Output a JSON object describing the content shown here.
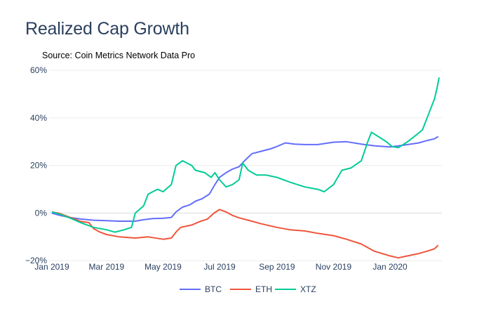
{
  "chart_data": {
    "type": "line",
    "title": "Realized Cap Growth",
    "subtitle": "Source: Coin Metrics Network Data Pro",
    "xlabel": "",
    "ylabel": "",
    "x_range": [
      "2018-12-29",
      "2020-02-26"
    ],
    "ylim": [
      -22,
      63
    ],
    "y_ticks": [
      -20,
      0,
      20,
      40,
      60
    ],
    "y_tick_labels": [
      "−20%",
      "0%",
      "20%",
      "40%",
      "60%"
    ],
    "x_ticks": [
      "2019-01-01",
      "2019-03-01",
      "2019-05-01",
      "2019-07-01",
      "2019-09-01",
      "2019-11-01",
      "2020-01-01"
    ],
    "x_tick_labels": [
      "Jan 2019",
      "Mar 2019",
      "May 2019",
      "Jul 2019",
      "Sep 2019",
      "Nov 2019",
      "Jan 2020"
    ],
    "grid": true,
    "legend": "bottom-center",
    "series": [
      {
        "name": "BTC",
        "color": "#636efa",
        "points": [
          [
            "2019-01-01",
            0
          ],
          [
            "2019-01-10",
            -1
          ],
          [
            "2019-01-20",
            -1.8
          ],
          [
            "2019-02-01",
            -2.5
          ],
          [
            "2019-02-15",
            -3
          ],
          [
            "2019-03-01",
            -3.2
          ],
          [
            "2019-03-15",
            -3.4
          ],
          [
            "2019-04-01",
            -3.4
          ],
          [
            "2019-04-10",
            -2.8
          ],
          [
            "2019-04-20",
            -2.3
          ],
          [
            "2019-05-01",
            -2.2
          ],
          [
            "2019-05-10",
            -1.8
          ],
          [
            "2019-05-15",
            0.5
          ],
          [
            "2019-05-22",
            2.5
          ],
          [
            "2019-05-30",
            3.5
          ],
          [
            "2019-06-05",
            5
          ],
          [
            "2019-06-12",
            6
          ],
          [
            "2019-06-20",
            8
          ],
          [
            "2019-06-26",
            12
          ],
          [
            "2019-07-01",
            15
          ],
          [
            "2019-07-08",
            17
          ],
          [
            "2019-07-15",
            18.5
          ],
          [
            "2019-07-22",
            19.5
          ],
          [
            "2019-07-28",
            22
          ],
          [
            "2019-08-05",
            25
          ],
          [
            "2019-08-15",
            26
          ],
          [
            "2019-08-25",
            27
          ],
          [
            "2019-09-01",
            28
          ],
          [
            "2019-09-10",
            29.5
          ],
          [
            "2019-09-20",
            29
          ],
          [
            "2019-10-01",
            28.8
          ],
          [
            "2019-10-15",
            28.8
          ],
          [
            "2019-11-01",
            29.8
          ],
          [
            "2019-11-15",
            30
          ],
          [
            "2019-12-01",
            29
          ],
          [
            "2019-12-15",
            28.3
          ],
          [
            "2020-01-01",
            27.8
          ],
          [
            "2020-01-15",
            28.5
          ],
          [
            "2020-02-01",
            29.5
          ],
          [
            "2020-02-10",
            30.5
          ],
          [
            "2020-02-18",
            31.2
          ],
          [
            "2020-02-22",
            32.2
          ]
        ]
      },
      {
        "name": "ETH",
        "color": "#ef553b",
        "points": [
          [
            "2019-01-01",
            0.5
          ],
          [
            "2019-01-08",
            0
          ],
          [
            "2019-01-15",
            -1
          ],
          [
            "2019-01-22",
            -2
          ],
          [
            "2019-02-01",
            -3.5
          ],
          [
            "2019-02-10",
            -4
          ],
          [
            "2019-02-15",
            -6.5
          ],
          [
            "2019-02-22",
            -8
          ],
          [
            "2019-03-01",
            -9
          ],
          [
            "2019-03-15",
            -10
          ],
          [
            "2019-04-01",
            -10.5
          ],
          [
            "2019-04-15",
            -10
          ],
          [
            "2019-05-01",
            -11
          ],
          [
            "2019-05-10",
            -10.5
          ],
          [
            "2019-05-15",
            -8
          ],
          [
            "2019-05-20",
            -6
          ],
          [
            "2019-06-01",
            -5
          ],
          [
            "2019-06-10",
            -3.5
          ],
          [
            "2019-06-18",
            -2.5
          ],
          [
            "2019-06-25",
            0
          ],
          [
            "2019-07-01",
            1.5
          ],
          [
            "2019-07-08",
            0.5
          ],
          [
            "2019-07-15",
            -1
          ],
          [
            "2019-07-22",
            -2
          ],
          [
            "2019-08-01",
            -3
          ],
          [
            "2019-08-15",
            -4.5
          ],
          [
            "2019-09-01",
            -6
          ],
          [
            "2019-09-15",
            -7
          ],
          [
            "2019-10-01",
            -7.5
          ],
          [
            "2019-10-15",
            -8.5
          ],
          [
            "2019-11-01",
            -9.5
          ],
          [
            "2019-11-15",
            -11
          ],
          [
            "2019-12-01",
            -13
          ],
          [
            "2019-12-15",
            -16
          ],
          [
            "2020-01-01",
            -18
          ],
          [
            "2020-01-10",
            -18.8
          ],
          [
            "2020-01-20",
            -18
          ],
          [
            "2020-02-01",
            -17
          ],
          [
            "2020-02-10",
            -16
          ],
          [
            "2020-02-18",
            -15
          ],
          [
            "2020-02-22",
            -13.5
          ]
        ]
      },
      {
        "name": "XTZ",
        "color": "#00cc96",
        "points": [
          [
            "2019-01-01",
            0.5
          ],
          [
            "2019-01-10",
            -0.5
          ],
          [
            "2019-01-20",
            -2
          ],
          [
            "2019-02-01",
            -4
          ],
          [
            "2019-02-15",
            -6
          ],
          [
            "2019-03-01",
            -7
          ],
          [
            "2019-03-10",
            -8
          ],
          [
            "2019-03-20",
            -7
          ],
          [
            "2019-03-28",
            -6
          ],
          [
            "2019-04-01",
            0
          ],
          [
            "2019-04-10",
            3
          ],
          [
            "2019-04-15",
            8
          ],
          [
            "2019-04-25",
            10
          ],
          [
            "2019-05-01",
            9
          ],
          [
            "2019-05-10",
            12
          ],
          [
            "2019-05-15",
            20
          ],
          [
            "2019-05-22",
            22
          ],
          [
            "2019-06-01",
            20
          ],
          [
            "2019-06-05",
            18
          ],
          [
            "2019-06-15",
            17
          ],
          [
            "2019-06-22",
            15
          ],
          [
            "2019-06-26",
            17
          ],
          [
            "2019-07-01",
            14
          ],
          [
            "2019-07-08",
            11
          ],
          [
            "2019-07-15",
            12
          ],
          [
            "2019-07-22",
            14
          ],
          [
            "2019-07-26",
            21
          ],
          [
            "2019-08-01",
            18
          ],
          [
            "2019-08-10",
            16
          ],
          [
            "2019-08-20",
            16
          ],
          [
            "2019-09-01",
            15
          ],
          [
            "2019-09-15",
            13
          ],
          [
            "2019-10-01",
            11
          ],
          [
            "2019-10-15",
            10
          ],
          [
            "2019-10-22",
            9
          ],
          [
            "2019-11-01",
            12
          ],
          [
            "2019-11-10",
            18
          ],
          [
            "2019-11-20",
            19
          ],
          [
            "2019-12-01",
            22
          ],
          [
            "2019-12-08",
            30
          ],
          [
            "2019-12-12",
            34
          ],
          [
            "2019-12-20",
            32
          ],
          [
            "2019-12-28",
            30
          ],
          [
            "2020-01-03",
            28
          ],
          [
            "2020-01-10",
            27.5
          ],
          [
            "2020-01-20",
            30
          ],
          [
            "2020-01-30",
            33
          ],
          [
            "2020-02-05",
            35
          ],
          [
            "2020-02-12",
            42
          ],
          [
            "2020-02-18",
            48
          ],
          [
            "2020-02-21",
            53
          ],
          [
            "2020-02-23",
            57
          ]
        ]
      }
    ]
  }
}
